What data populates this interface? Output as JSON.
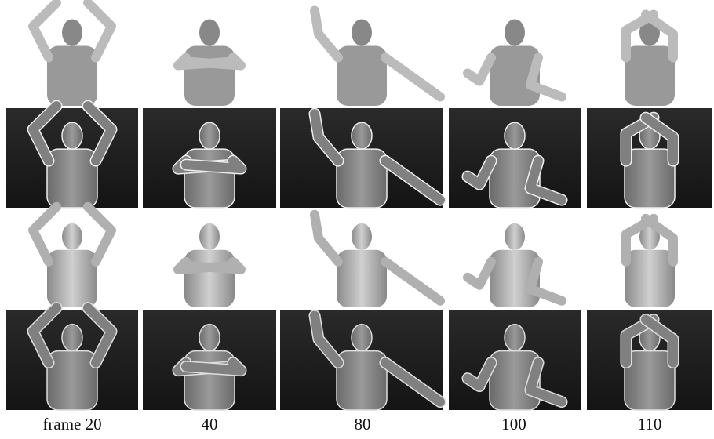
{
  "captions": [
    "frame 20",
    "40",
    "80",
    "100",
    "110"
  ]
}
